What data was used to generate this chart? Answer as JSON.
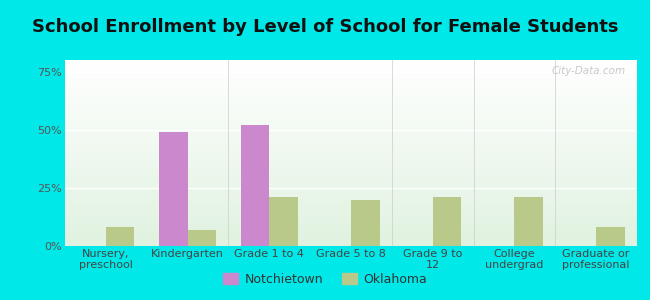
{
  "title": "School Enrollment by Level of School for Female Students",
  "categories": [
    "Nursery,\npreschool",
    "Kindergarten",
    "Grade 1 to 4",
    "Grade 5 to 8",
    "Grade 9 to\n12",
    "College\nundergrad",
    "Graduate or\nprofessional"
  ],
  "notchietown": [
    0,
    49,
    52,
    0,
    0,
    0,
    0
  ],
  "oklahoma": [
    8,
    7,
    21,
    20,
    21,
    21,
    8
  ],
  "notchietown_color": "#cc88cc",
  "oklahoma_color": "#b8c98a",
  "bar_width": 0.35,
  "ylim": [
    0,
    80
  ],
  "yticks": [
    0,
    25,
    50,
    75
  ],
  "yticklabels": [
    "0%",
    "25%",
    "50%",
    "75%"
  ],
  "background_color": "#00e8e8",
  "plot_bg_color": "#edf5e8",
  "title_fontsize": 13,
  "tick_fontsize": 8,
  "legend_fontsize": 9,
  "watermark": "City-Data.com"
}
